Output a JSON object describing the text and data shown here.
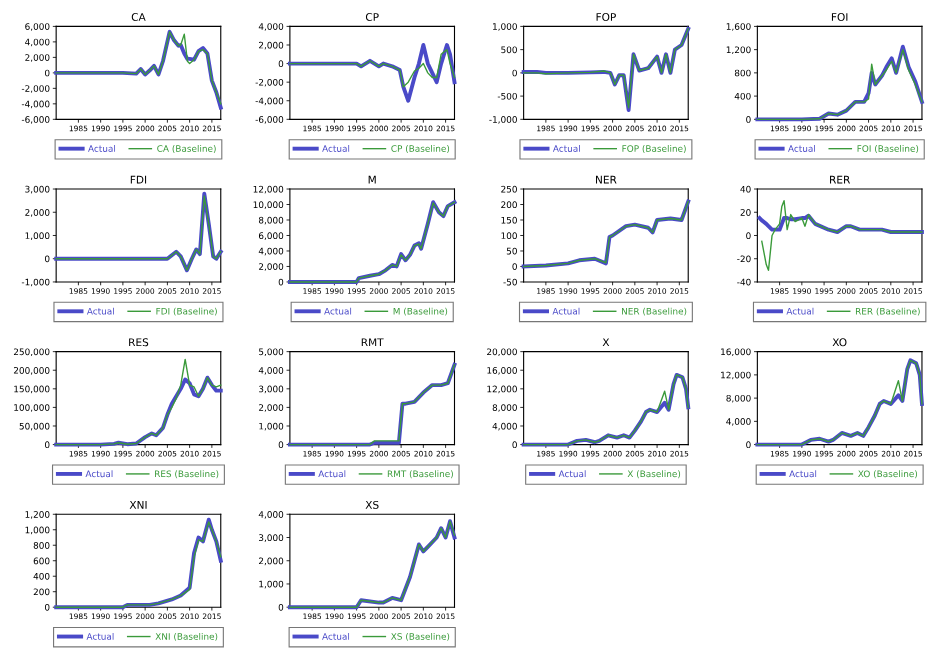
{
  "chart_data": [
    {
      "type": "line",
      "title": "CA",
      "legend": "bottom",
      "xlim": [
        1980,
        2017
      ],
      "xticks": [
        1985,
        1990,
        1995,
        2000,
        2005,
        2010,
        2015
      ],
      "ylim": [
        -6000,
        6000
      ],
      "yticks": [
        {
          "value": -6000,
          "label": "-6,000"
        },
        {
          "value": -4000,
          "label": "-4,000"
        },
        {
          "value": -2000,
          "label": "-2,000"
        },
        0,
        {
          "value": 2000,
          "label": "2,000"
        },
        {
          "value": 4000,
          "label": "4,000"
        },
        {
          "value": 6000,
          "label": "6,000"
        }
      ],
      "x": [
        1980,
        1995,
        1998,
        1999,
        2000,
        2001,
        2002,
        2003,
        2004,
        2005.5,
        2006.5,
        2007.5,
        2008,
        2008.8,
        2009.5,
        2010,
        2011,
        2012,
        2013,
        2014,
        2015,
        2016,
        2017
      ],
      "series": [
        {
          "name": "Actual",
          "color": "#4a4ac8",
          "values": [
            0,
            0,
            -100,
            500,
            -200,
            300,
            900,
            -200,
            1500,
            5300,
            4200,
            3500,
            3600,
            2500,
            1800,
            1800,
            1700,
            2800,
            3200,
            2500,
            -1000,
            -2500,
            -4500
          ]
        },
        {
          "name": "CA (Baseline)",
          "color": "#3a9a3a",
          "values": [
            0,
            0,
            -100,
            500,
            -200,
            300,
            900,
            -200,
            1500,
            5300,
            4200,
            3500,
            3600,
            5000,
            1500,
            1200,
            1700,
            2800,
            3000,
            2500,
            -1000,
            -2500,
            -4000
          ]
        }
      ]
    },
    {
      "type": "line",
      "title": "CP",
      "legend": "bottom",
      "xlim": [
        1980,
        2017
      ],
      "xticks": [
        1985,
        1990,
        1995,
        2000,
        2005,
        2010,
        2015
      ],
      "ylim": [
        -6000,
        4000
      ],
      "yticks": [
        {
          "value": -6000,
          "label": "-6,000"
        },
        {
          "value": -4000,
          "label": "-4,000"
        },
        {
          "value": -2000,
          "label": "-2,000"
        },
        0,
        {
          "value": 2000,
          "label": "2,000"
        },
        {
          "value": 4000,
          "label": "4,000"
        }
      ],
      "x": [
        1980,
        1995,
        1996,
        1998,
        2000,
        2001,
        2003,
        2004.7,
        2005.5,
        2006.6,
        2008,
        2009,
        2010,
        2011,
        2012,
        2013,
        2014,
        2015.3,
        2016,
        2017
      ],
      "series": [
        {
          "name": "Actual",
          "color": "#4a4ac8",
          "values": [
            0,
            0,
            -300,
            300,
            -300,
            0,
            -300,
            -700,
            -2500,
            -4000,
            -1500,
            0,
            2000,
            0,
            -1000,
            -2000,
            0,
            2000,
            1000,
            -2000
          ]
        },
        {
          "name": "CP (Baseline)",
          "color": "#3a9a3a",
          "values": [
            0,
            0,
            -300,
            300,
            -300,
            0,
            -300,
            -700,
            -2500,
            -2000,
            -800,
            -500,
            0,
            -1000,
            -1500,
            -1500,
            1000,
            1500,
            0,
            -1500
          ]
        }
      ]
    },
    {
      "type": "line",
      "title": "FOP",
      "legend": "bottom",
      "xlim": [
        1980,
        2017
      ],
      "xticks": [
        1985,
        1990,
        1995,
        2000,
        2005,
        2010,
        2015
      ],
      "ylim": [
        -1000,
        1000
      ],
      "yticks": [
        {
          "value": -1000,
          "label": "-1,000"
        },
        -500,
        0,
        500,
        {
          "value": 1000,
          "label": "1,000"
        }
      ],
      "x": [
        1980,
        1983,
        1985,
        1990,
        1995,
        1998,
        1999.5,
        2000.5,
        2001.5,
        2002.5,
        2003.6,
        2004.7,
        2006,
        2008,
        2010,
        2011,
        2012,
        2013,
        2014,
        2015.5,
        2017
      ],
      "series": [
        {
          "name": "Actual",
          "color": "#4a4ac8",
          "values": [
            20,
            20,
            0,
            0,
            10,
            20,
            0,
            -250,
            -50,
            -50,
            -800,
            400,
            50,
            100,
            350,
            0,
            400,
            0,
            500,
            600,
            950
          ]
        },
        {
          "name": "FOP (Baseline)",
          "color": "#3a9a3a",
          "values": [
            0,
            0,
            -20,
            0,
            10,
            40,
            0,
            -250,
            -50,
            -50,
            -750,
            400,
            50,
            100,
            350,
            0,
            400,
            0,
            500,
            600,
            950
          ]
        }
      ]
    },
    {
      "type": "line",
      "title": "FOI",
      "legend": "bottom",
      "xlim": [
        1980,
        2017
      ],
      "xticks": [
        1985,
        1990,
        1995,
        2000,
        2005,
        2010,
        2015
      ],
      "ylim": [
        0,
        1600
      ],
      "yticks": [
        0,
        400,
        800,
        {
          "value": 1200,
          "label": "1,200"
        },
        {
          "value": 1600,
          "label": "1,600"
        }
      ],
      "x": [
        1980,
        1990,
        1994,
        1996,
        1998,
        2000,
        2002,
        2004,
        2005,
        2005.7,
        2006.5,
        2008,
        2009,
        2010.2,
        2011.2,
        2012.7,
        2014,
        2015.5,
        2017
      ],
      "series": [
        {
          "name": "Actual",
          "color": "#4a4ac8",
          "values": [
            0,
            0,
            10,
            100,
            80,
            150,
            300,
            300,
            450,
            800,
            600,
            750,
            900,
            1050,
            800,
            1250,
            900,
            650,
            300
          ]
        },
        {
          "name": "FOI (Baseline)",
          "color": "#3a9a3a",
          "values": [
            0,
            0,
            10,
            100,
            80,
            150,
            300,
            300,
            350,
            950,
            600,
            750,
            850,
            1000,
            800,
            1200,
            850,
            600,
            300
          ]
        }
      ]
    },
    {
      "type": "line",
      "title": "FDI",
      "legend": "bottom",
      "xlim": [
        1980,
        2017
      ],
      "xticks": [
        1985,
        1990,
        1995,
        2000,
        2005,
        2010,
        2015
      ],
      "ylim": [
        -1000,
        3000
      ],
      "yticks": [
        {
          "value": -1000,
          "label": "-1,000"
        },
        0,
        {
          "value": 1000,
          "label": "1,000"
        },
        {
          "value": 2000,
          "label": "2,000"
        },
        {
          "value": 3000,
          "label": "3,000"
        }
      ],
      "x": [
        1980,
        2000,
        2003,
        2005,
        2007,
        2008,
        2009.4,
        2010.5,
        2011.5,
        2012.3,
        2013.3,
        2014.3,
        2015.3,
        2016,
        2017
      ],
      "series": [
        {
          "name": "Actual",
          "color": "#4a4ac8",
          "values": [
            0,
            0,
            0,
            0,
            300,
            100,
            -500,
            0,
            400,
            200,
            2800,
            1500,
            100,
            0,
            300
          ]
        },
        {
          "name": "FDI (Baseline)",
          "color": "#3a9a3a",
          "values": [
            0,
            0,
            0,
            0,
            300,
            100,
            -500,
            0,
            400,
            200,
            2700,
            1500,
            100,
            0,
            300
          ]
        }
      ]
    },
    {
      "type": "line",
      "title": "M",
      "legend": "bottom",
      "xlim": [
        1980,
        2017
      ],
      "xticks": [
        1985,
        1990,
        1995,
        2000,
        2005,
        2010,
        2015
      ],
      "ylim": [
        0,
        12000
      ],
      "yticks": [
        0,
        {
          "value": 2000,
          "label": "2,000"
        },
        {
          "value": 4000,
          "label": "4,000"
        },
        {
          "value": 6000,
          "label": "6,000"
        },
        {
          "value": 8000,
          "label": "8,000"
        },
        {
          "value": 10000,
          "label": "10,000"
        },
        {
          "value": 12000,
          "label": "12,000"
        }
      ],
      "x": [
        1980,
        1995,
        1995.5,
        1998,
        2000,
        2001.5,
        2003,
        2004,
        2005,
        2006,
        2007,
        2008,
        2009,
        2009.5,
        2011,
        2012.2,
        2013.5,
        2014.5,
        2015.5,
        2017
      ],
      "series": [
        {
          "name": "Actual",
          "color": "#4a4ac8",
          "values": [
            0,
            0,
            500,
            800,
            1000,
            1500,
            2200,
            2000,
            3600,
            2800,
            3500,
            4700,
            5000,
            4300,
            7500,
            10300,
            9000,
            8500,
            9800,
            10300
          ]
        },
        {
          "name": "M (Baseline)",
          "color": "#3a9a3a",
          "values": [
            0,
            0,
            500,
            800,
            1000,
            1500,
            2200,
            2000,
            3500,
            2800,
            3500,
            4700,
            4900,
            4300,
            7500,
            10200,
            9000,
            8500,
            9800,
            10300
          ]
        }
      ]
    },
    {
      "type": "line",
      "title": "NER",
      "legend": "bottom",
      "xlim": [
        1980,
        2017
      ],
      "xticks": [
        1985,
        1990,
        1995,
        2000,
        2005,
        2010,
        2015
      ],
      "ylim": [
        -50,
        250
      ],
      "yticks": [
        -50,
        0,
        50,
        100,
        150,
        200,
        250
      ],
      "x": [
        1980,
        1985,
        1990,
        1992.5,
        1996,
        1998.5,
        1999.3,
        2000,
        2003,
        2005,
        2008,
        2009,
        2010,
        2013,
        2015.5,
        2017
      ],
      "series": [
        {
          "name": "Actual",
          "color": "#4a4ac8",
          "values": [
            0,
            3,
            10,
            20,
            25,
            10,
            95,
            100,
            130,
            135,
            125,
            110,
            150,
            155,
            150,
            210
          ]
        },
        {
          "name": "NER (Baseline)",
          "color": "#3a9a3a",
          "values": [
            0,
            3,
            10,
            20,
            25,
            12,
            95,
            100,
            130,
            135,
            125,
            110,
            150,
            155,
            150,
            210
          ]
        }
      ]
    },
    {
      "type": "line",
      "title": "RER",
      "legend": "bottom",
      "xlim": [
        1980,
        2017
      ],
      "xticks": [
        1985,
        1990,
        1995,
        2000,
        2005,
        2010,
        2015
      ],
      "ylim": [
        -40,
        40
      ],
      "yticks": [
        -40,
        -20,
        0,
        20,
        40
      ],
      "x": [
        1980.5,
        1981,
        1982,
        1982.5,
        1983.3,
        1984,
        1985,
        1985.5,
        1986,
        1986.7,
        1987.5,
        1988.5,
        1990,
        1990.7,
        1991.5,
        1993,
        1996,
        1998,
        2000,
        2001,
        2003,
        2008,
        2010,
        2012,
        2017
      ],
      "series": [
        {
          "name": "Actual",
          "color": "#4a4ac8",
          "values": [
            15,
            13,
            10,
            8,
            5,
            5,
            5,
            10,
            15,
            15,
            14,
            14,
            15,
            15,
            17,
            10,
            5,
            3,
            8,
            8,
            5,
            5,
            3,
            3,
            3
          ]
        },
        {
          "name": "RER (Baseline)",
          "color": "#3a9a3a",
          "values": [
            null,
            -5,
            -25,
            -30,
            0,
            5,
            10,
            25,
            30,
            5,
            18,
            12,
            15,
            8,
            18,
            10,
            5,
            3,
            8,
            8,
            5,
            5,
            3,
            3,
            3
          ]
        }
      ]
    },
    {
      "type": "line",
      "title": "RES",
      "legend": "bottom",
      "xlim": [
        1980,
        2017
      ],
      "xticks": [
        1985,
        1990,
        1995,
        2000,
        2005,
        2010,
        2015
      ],
      "ylim": [
        0,
        250000
      ],
      "yticks": [
        0,
        {
          "value": 50000,
          "label": "50,000"
        },
        {
          "value": 100000,
          "label": "100,000"
        },
        {
          "value": 150000,
          "label": "150,000"
        },
        {
          "value": 200000,
          "label": "200,000"
        },
        {
          "value": 250000,
          "label": "250,000"
        }
      ],
      "x": [
        1980,
        1990,
        1993,
        1994,
        1996,
        1998,
        2000,
        2001.5,
        2002.5,
        2004,
        2005,
        2006,
        2007,
        2008,
        2009,
        2010,
        2011,
        2012,
        2013,
        2014,
        2015,
        2016,
        2017
      ],
      "series": [
        {
          "name": "Actual",
          "color": "#4a4ac8",
          "values": [
            0,
            0,
            2000,
            5000,
            1000,
            3000,
            20000,
            30000,
            25000,
            45000,
            80000,
            110000,
            130000,
            150000,
            175000,
            165000,
            135000,
            130000,
            150000,
            180000,
            160000,
            145000,
            145000
          ]
        },
        {
          "name": "RES (Baseline)",
          "color": "#3a9a3a",
          "values": [
            0,
            0,
            2000,
            5000,
            1000,
            3000,
            20000,
            30000,
            25000,
            45000,
            80000,
            100000,
            125000,
            160000,
            229000,
            160000,
            155000,
            130000,
            150000,
            180000,
            160000,
            155000,
            160000
          ]
        }
      ]
    },
    {
      "type": "line",
      "title": "RMT",
      "legend": "bottom",
      "xlim": [
        1980,
        2017
      ],
      "xticks": [
        1985,
        1990,
        1995,
        2000,
        2005,
        2010,
        2015
      ],
      "ylim": [
        0,
        5000
      ],
      "yticks": [
        0,
        {
          "value": 1000,
          "label": "1,000"
        },
        {
          "value": 2000,
          "label": "2,000"
        },
        {
          "value": 3000,
          "label": "3,000"
        },
        {
          "value": 4000,
          "label": "4,000"
        },
        {
          "value": 5000,
          "label": "5,000"
        }
      ],
      "x": [
        1980,
        1998,
        1999,
        2004.5,
        2005.3,
        2006,
        2008,
        2010,
        2012,
        2014,
        2015.5,
        2017
      ],
      "series": [
        {
          "name": "Actual",
          "color": "#4a4ac8",
          "values": [
            0,
            0,
            100,
            100,
            2200,
            2200,
            2300,
            2800,
            3200,
            3200,
            3300,
            4300
          ]
        },
        {
          "name": "RMT (Baseline)",
          "color": "#3a9a3a",
          "values": [
            0,
            0,
            200,
            200,
            2200,
            2200,
            2300,
            2800,
            3200,
            3200,
            3300,
            4300
          ]
        }
      ]
    },
    {
      "type": "line",
      "title": "X",
      "legend": "bottom",
      "xlim": [
        1980,
        2017
      ],
      "xticks": [
        1985,
        1990,
        1995,
        2000,
        2005,
        2010,
        2015
      ],
      "ylim": [
        0,
        20000
      ],
      "yticks": [
        0,
        {
          "value": 4000,
          "label": "4,000"
        },
        {
          "value": 8000,
          "label": "8,000"
        },
        {
          "value": 12000,
          "label": "12,000"
        },
        {
          "value": 16000,
          "label": "16,000"
        },
        {
          "value": 20000,
          "label": "20,000"
        }
      ],
      "x": [
        1980,
        1990,
        1992,
        1994,
        1996,
        1997,
        1999,
        2001,
        2002.5,
        2003.8,
        2005,
        2006.4,
        2007.5,
        2008.4,
        2010,
        2011.7,
        2012.6,
        2013.7,
        2014.4,
        2015.7,
        2016.5,
        2017
      ],
      "series": [
        {
          "name": "Actual",
          "color": "#4a4ac8",
          "values": [
            0,
            0,
            800,
            1000,
            500,
            800,
            2000,
            1500,
            2000,
            1500,
            3000,
            5000,
            7000,
            7500,
            7000,
            9000,
            7500,
            13000,
            15000,
            14500,
            12000,
            8000
          ]
        },
        {
          "name": "X (Baseline)",
          "color": "#3a9a3a",
          "values": [
            0,
            0,
            800,
            1000,
            500,
            800,
            2000,
            1500,
            2000,
            1500,
            3000,
            5000,
            7000,
            7500,
            7000,
            11500,
            7500,
            13000,
            15000,
            14500,
            12000,
            8000
          ]
        }
      ]
    },
    {
      "type": "line",
      "title": "XO",
      "legend": "bottom",
      "xlim": [
        1980,
        2017
      ],
      "xticks": [
        1985,
        1990,
        1995,
        2000,
        2005,
        2010,
        2015
      ],
      "ylim": [
        0,
        16000
      ],
      "yticks": [
        0,
        {
          "value": 4000,
          "label": "4,000"
        },
        {
          "value": 8000,
          "label": "8,000"
        },
        {
          "value": 12000,
          "label": "12,000"
        },
        {
          "value": 16000,
          "label": "16,000"
        }
      ],
      "x": [
        1980,
        1990,
        1992,
        1994,
        1996,
        1997,
        1999,
        2001,
        2002.5,
        2003.8,
        2005,
        2006.4,
        2007.5,
        2008.4,
        2010,
        2011.7,
        2012.6,
        2013.7,
        2014.4,
        2015.7,
        2016.5,
        2017
      ],
      "series": [
        {
          "name": "Actual",
          "color": "#4a4ac8",
          "values": [
            0,
            0,
            800,
            1000,
            500,
            800,
            2000,
            1500,
            2000,
            1500,
            3000,
            5000,
            7000,
            7500,
            7000,
            8500,
            7500,
            13000,
            14500,
            14000,
            12000,
            7000
          ]
        },
        {
          "name": "XO (Baseline)",
          "color": "#3a9a3a",
          "values": [
            0,
            0,
            800,
            1000,
            500,
            800,
            2000,
            1500,
            2000,
            1500,
            3000,
            5000,
            7000,
            7500,
            7000,
            11000,
            7500,
            13000,
            14500,
            14000,
            12000,
            7000
          ]
        }
      ]
    },
    {
      "type": "line",
      "title": "XNI",
      "legend": "bottom",
      "xlim": [
        1980,
        2017
      ],
      "xticks": [
        1985,
        1990,
        1995,
        2000,
        2005,
        2010,
        2015
      ],
      "ylim": [
        0,
        1200
      ],
      "yticks": [
        0,
        200,
        400,
        600,
        800,
        {
          "value": 1000,
          "label": "1,000"
        },
        {
          "value": 1200,
          "label": "1,200"
        }
      ],
      "x": [
        1980,
        1995,
        1996,
        2001,
        2003,
        2006,
        2008,
        2010,
        2011,
        2012,
        2013,
        2014.3,
        2015,
        2016,
        2017
      ],
      "series": [
        {
          "name": "Actual",
          "color": "#4a4ac8",
          "values": [
            0,
            0,
            30,
            30,
            50,
            100,
            150,
            250,
            700,
            900,
            850,
            1130,
            1000,
            850,
            600
          ]
        },
        {
          "name": "XNI (Baseline)",
          "color": "#3a9a3a",
          "values": [
            0,
            0,
            30,
            30,
            50,
            100,
            150,
            230,
            650,
            870,
            850,
            1100,
            1000,
            850,
            650
          ]
        }
      ]
    },
    {
      "type": "line",
      "title": "XS",
      "legend": "bottom",
      "xlim": [
        1980,
        2017
      ],
      "xticks": [
        1985,
        1990,
        1995,
        2000,
        2005,
        2010,
        2015
      ],
      "ylim": [
        0,
        4000
      ],
      "yticks": [
        0,
        {
          "value": 1000,
          "label": "1,000"
        },
        {
          "value": 2000,
          "label": "2,000"
        },
        {
          "value": 3000,
          "label": "3,000"
        },
        {
          "value": 4000,
          "label": "4,000"
        }
      ],
      "x": [
        1980,
        1995,
        1996,
        2000,
        2001,
        2003,
        2005,
        2007,
        2008,
        2009,
        2010,
        2011,
        2013,
        2014,
        2015,
        2016,
        2017
      ],
      "series": [
        {
          "name": "Actual",
          "color": "#4a4ac8",
          "values": [
            0,
            0,
            300,
            200,
            200,
            400,
            300,
            1300,
            2000,
            2700,
            2400,
            2600,
            3000,
            3400,
            3000,
            3700,
            3000
          ]
        },
        {
          "name": "XS (Baseline)",
          "color": "#3a9a3a",
          "values": [
            0,
            0,
            300,
            200,
            200,
            400,
            300,
            1300,
            2000,
            2700,
            2400,
            2600,
            3000,
            3400,
            3000,
            3700,
            3100
          ]
        }
      ]
    }
  ]
}
